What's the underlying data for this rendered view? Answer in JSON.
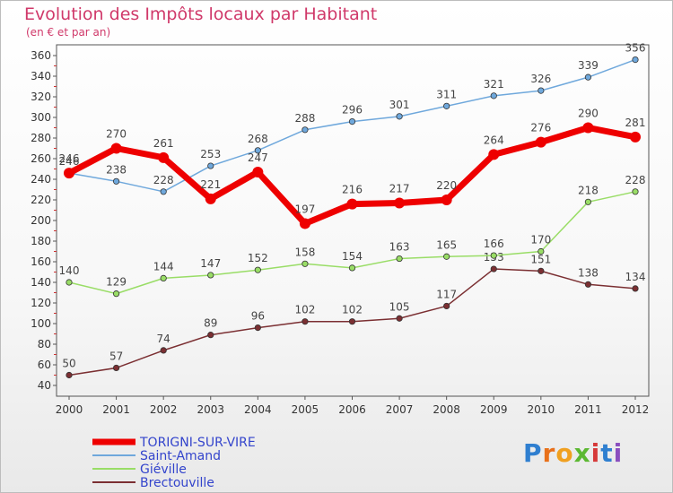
{
  "chart_data": {
    "type": "line",
    "title": "Evolution des Impôts locaux par Habitant",
    "subtitle": "(en € et par an)",
    "x": [
      "2000",
      "2001",
      "2002",
      "2003",
      "2004",
      "2005",
      "2006",
      "2007",
      "2008",
      "2009",
      "2010",
      "2011",
      "2012"
    ],
    "ylim": [
      40,
      360
    ],
    "yticks": [
      40,
      60,
      80,
      100,
      120,
      140,
      160,
      180,
      200,
      220,
      240,
      260,
      280,
      300,
      320,
      340,
      360
    ],
    "grid": false,
    "legend_position": "bottom-left",
    "series": [
      {
        "name": "TORIGNI-SUR-VIRE",
        "color": "#ee0000",
        "values": [
          246,
          270,
          261,
          221,
          247,
          197,
          216,
          217,
          220,
          264,
          276,
          290,
          281
        ]
      },
      {
        "name": "Saint-Amand",
        "color": "#6fa8dc",
        "values": [
          246,
          238,
          228,
          253,
          268,
          288,
          296,
          301,
          311,
          321,
          326,
          339,
          356
        ]
      },
      {
        "name": "Giéville",
        "color": "#99dd66",
        "values": [
          140,
          129,
          144,
          147,
          152,
          158,
          154,
          163,
          165,
          166,
          170,
          218,
          228
        ]
      },
      {
        "name": "Brectouville",
        "color": "#7b2f32",
        "values": [
          50,
          57,
          74,
          89,
          96,
          102,
          102,
          105,
          117,
          153,
          151,
          138,
          134
        ]
      }
    ]
  },
  "logo": {
    "text": "Proxiti"
  }
}
